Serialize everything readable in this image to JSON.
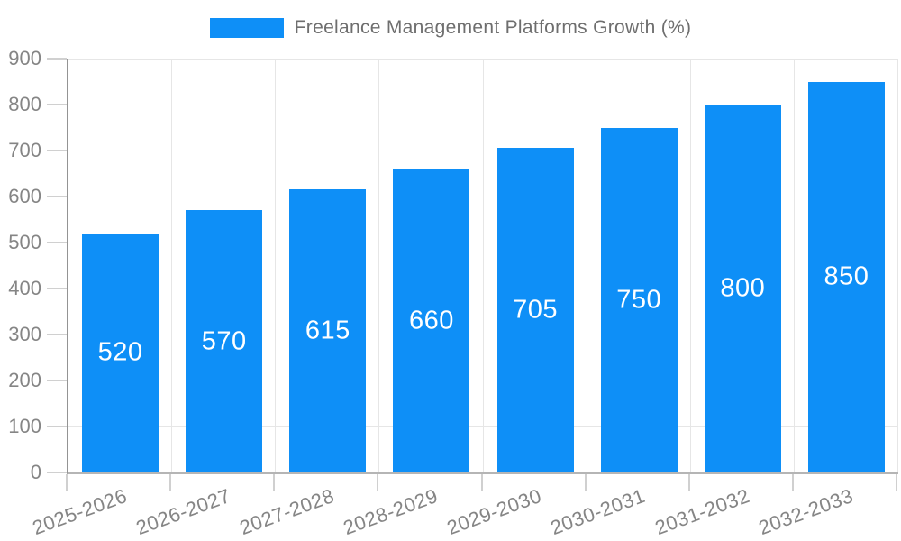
{
  "chart_data": {
    "type": "bar",
    "title": "Freelance Management Platforms Growth (%)",
    "legend": {
      "position": "top",
      "label": "Freelance Management Platforms Growth (%)"
    },
    "categories": [
      "2025-2026",
      "2026-2027",
      "2027-2028",
      "2028-2029",
      "2029-2030",
      "2030-2031",
      "2031-2032",
      "2032-2033"
    ],
    "values": [
      520,
      570,
      615,
      660,
      705,
      750,
      800,
      850
    ],
    "xlabel": "",
    "ylabel": "",
    "ylim": [
      0,
      900
    ],
    "yticks": [
      0,
      100,
      200,
      300,
      400,
      500,
      600,
      700,
      800,
      900
    ],
    "grid": true,
    "x_label_rotation_deg": -20,
    "colors": {
      "bar": "#0e8ff7",
      "value_label": "#ffffff",
      "grid": "#e6e6e6",
      "tick": "#d0d0d0",
      "y_axis_line": "#949494",
      "x_axis_line": "#b5b5b5",
      "axis_text": "#858585",
      "legend_text": "#6e6e6e",
      "background": "#ffffff"
    }
  }
}
